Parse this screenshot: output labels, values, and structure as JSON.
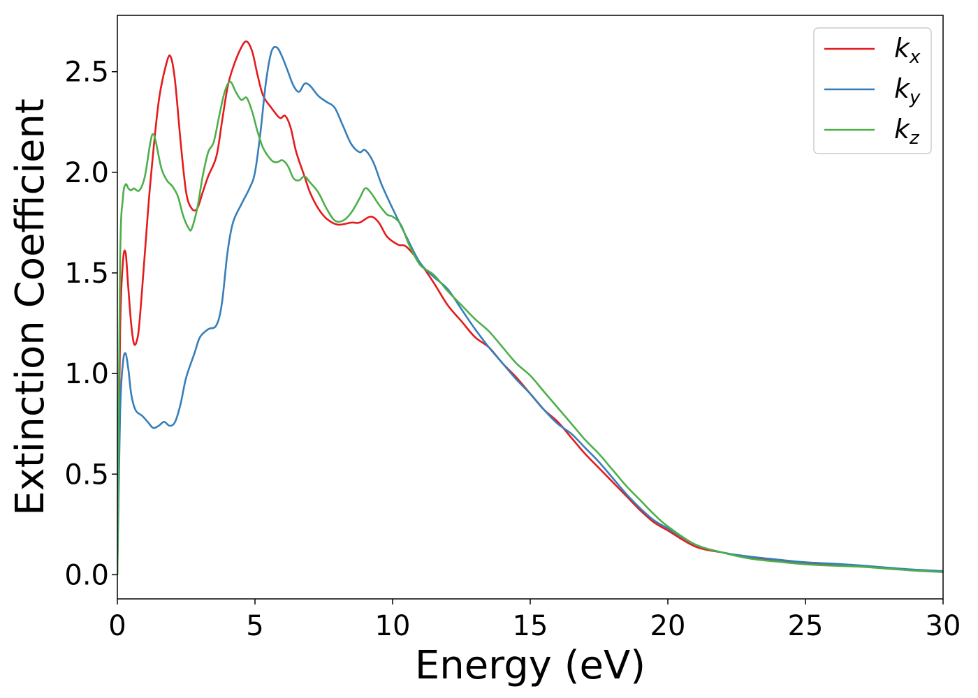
{
  "chart_data": {
    "type": "line",
    "title": "",
    "xlabel": "Energy (eV)",
    "ylabel": "Extinction Coefficient",
    "xlim": [
      0,
      30
    ],
    "ylim": [
      -0.12,
      2.78
    ],
    "xticks": [
      0,
      5,
      10,
      15,
      20,
      25,
      30
    ],
    "xtick_labels": [
      "0",
      "5",
      "10",
      "15",
      "20",
      "25",
      "30"
    ],
    "yticks": [
      0.0,
      0.5,
      1.0,
      1.5,
      2.0,
      2.5
    ],
    "ytick_labels": [
      "0.0",
      "0.5",
      "1.0",
      "1.5",
      "2.0",
      "2.5"
    ],
    "grid": false,
    "legend_position": "top-right",
    "series": [
      {
        "name": "k",
        "subscript": "x",
        "color": "#e41a1c",
        "x": [
          0,
          0.1,
          0.2,
          0.3,
          0.4,
          0.5,
          0.6,
          0.7,
          0.8,
          1.0,
          1.2,
          1.5,
          1.8,
          1.95,
          2.1,
          2.3,
          2.5,
          2.7,
          2.9,
          3.1,
          3.3,
          3.6,
          3.8,
          4.0,
          4.2,
          4.5,
          4.7,
          4.9,
          5.1,
          5.3,
          5.6,
          5.9,
          6.1,
          6.3,
          6.5,
          6.8,
          7.0,
          7.3,
          7.6,
          8.0,
          8.5,
          8.8,
          9.2,
          9.5,
          9.8,
          10.2,
          10.5,
          11.0,
          11.5,
          12.0,
          12.5,
          13.0,
          13.5,
          14.0,
          14.5,
          15.0,
          15.5,
          16.0,
          16.5,
          17.0,
          17.5,
          18.0,
          18.5,
          19.0,
          19.5,
          20.0,
          21.0,
          22.0,
          23.0,
          24.0,
          25.0,
          26.0,
          27.0,
          28.0,
          29.0,
          30.0
        ],
        "y": [
          0.0,
          1.2,
          1.55,
          1.6,
          1.42,
          1.25,
          1.15,
          1.16,
          1.25,
          1.6,
          1.95,
          2.35,
          2.55,
          2.57,
          2.45,
          2.15,
          1.9,
          1.82,
          1.82,
          1.9,
          1.98,
          2.08,
          2.25,
          2.42,
          2.52,
          2.62,
          2.65,
          2.6,
          2.48,
          2.38,
          2.32,
          2.27,
          2.28,
          2.22,
          2.1,
          1.98,
          1.9,
          1.82,
          1.77,
          1.74,
          1.75,
          1.75,
          1.78,
          1.75,
          1.68,
          1.64,
          1.63,
          1.55,
          1.45,
          1.34,
          1.26,
          1.18,
          1.13,
          1.05,
          0.98,
          0.9,
          0.82,
          0.76,
          0.68,
          0.6,
          0.53,
          0.46,
          0.39,
          0.32,
          0.26,
          0.22,
          0.14,
          0.11,
          0.085,
          0.07,
          0.058,
          0.05,
          0.045,
          0.032,
          0.022,
          0.015
        ]
      },
      {
        "name": "k",
        "subscript": "y",
        "color": "#377eb8",
        "x": [
          0,
          0.1,
          0.2,
          0.3,
          0.4,
          0.5,
          0.6,
          0.7,
          0.9,
          1.1,
          1.3,
          1.5,
          1.7,
          1.9,
          2.1,
          2.3,
          2.5,
          2.8,
          3.0,
          3.3,
          3.6,
          3.8,
          4.0,
          4.2,
          4.5,
          4.8,
          5.0,
          5.2,
          5.4,
          5.6,
          5.8,
          6.0,
          6.2,
          6.4,
          6.6,
          6.8,
          7.0,
          7.3,
          7.6,
          7.9,
          8.2,
          8.5,
          8.8,
          9.0,
          9.3,
          9.6,
          10.0,
          10.5,
          11.0,
          11.5,
          12.0,
          12.5,
          13.0,
          13.5,
          14.0,
          14.5,
          15.0,
          15.5,
          16.0,
          16.5,
          17.0,
          17.5,
          18.0,
          18.5,
          19.0,
          19.5,
          20.0,
          21.0,
          22.0,
          23.0,
          24.0,
          25.0,
          26.0,
          27.0,
          28.0,
          29.0,
          30.0
        ],
        "y": [
          0.0,
          0.8,
          1.05,
          1.1,
          1.02,
          0.9,
          0.84,
          0.81,
          0.79,
          0.76,
          0.73,
          0.74,
          0.76,
          0.74,
          0.76,
          0.85,
          0.98,
          1.1,
          1.18,
          1.22,
          1.24,
          1.35,
          1.6,
          1.75,
          1.84,
          1.92,
          2.0,
          2.2,
          2.45,
          2.6,
          2.62,
          2.57,
          2.5,
          2.43,
          2.4,
          2.44,
          2.43,
          2.38,
          2.35,
          2.32,
          2.23,
          2.14,
          2.1,
          2.11,
          2.05,
          1.94,
          1.82,
          1.68,
          1.55,
          1.48,
          1.42,
          1.32,
          1.22,
          1.13,
          1.05,
          0.97,
          0.9,
          0.82,
          0.75,
          0.7,
          0.63,
          0.56,
          0.48,
          0.4,
          0.33,
          0.27,
          0.23,
          0.15,
          0.11,
          0.09,
          0.075,
          0.062,
          0.055,
          0.046,
          0.035,
          0.025,
          0.018
        ]
      },
      {
        "name": "k",
        "subscript": "z",
        "color": "#4daf4a",
        "x": [
          0,
          0.1,
          0.2,
          0.3,
          0.4,
          0.5,
          0.6,
          0.8,
          1.0,
          1.2,
          1.3,
          1.4,
          1.6,
          1.8,
          2.0,
          2.2,
          2.4,
          2.6,
          2.7,
          2.9,
          3.1,
          3.3,
          3.5,
          3.7,
          3.9,
          4.1,
          4.3,
          4.5,
          4.7,
          4.9,
          5.1,
          5.3,
          5.6,
          5.8,
          6.0,
          6.2,
          6.4,
          6.6,
          6.8,
          7.0,
          7.3,
          7.6,
          7.9,
          8.2,
          8.5,
          8.8,
          9.0,
          9.2,
          9.5,
          9.8,
          10.0,
          10.3,
          10.6,
          11.0,
          11.5,
          12.0,
          12.5,
          13.0,
          13.5,
          14.0,
          14.5,
          15.0,
          15.5,
          16.0,
          16.5,
          17.0,
          17.5,
          18.0,
          18.5,
          19.0,
          19.5,
          20.0,
          21.0,
          22.0,
          23.0,
          24.0,
          25.0,
          26.0,
          27.0,
          28.0,
          29.0,
          30.0
        ],
        "y": [
          0.0,
          1.55,
          1.87,
          1.94,
          1.92,
          1.91,
          1.92,
          1.91,
          1.98,
          2.15,
          2.19,
          2.15,
          2.02,
          1.96,
          1.93,
          1.88,
          1.78,
          1.72,
          1.72,
          1.82,
          1.98,
          2.1,
          2.15,
          2.28,
          2.4,
          2.45,
          2.4,
          2.36,
          2.37,
          2.3,
          2.2,
          2.12,
          2.06,
          2.05,
          2.06,
          2.03,
          1.97,
          1.96,
          1.98,
          1.95,
          1.9,
          1.82,
          1.76,
          1.76,
          1.8,
          1.87,
          1.92,
          1.9,
          1.84,
          1.79,
          1.78,
          1.74,
          1.64,
          1.54,
          1.49,
          1.41,
          1.34,
          1.27,
          1.21,
          1.13,
          1.05,
          0.99,
          0.91,
          0.83,
          0.75,
          0.67,
          0.6,
          0.52,
          0.44,
          0.37,
          0.3,
          0.24,
          0.15,
          0.11,
          0.08,
          0.065,
          0.052,
          0.045,
          0.04,
          0.03,
          0.02,
          0.013
        ]
      }
    ]
  }
}
